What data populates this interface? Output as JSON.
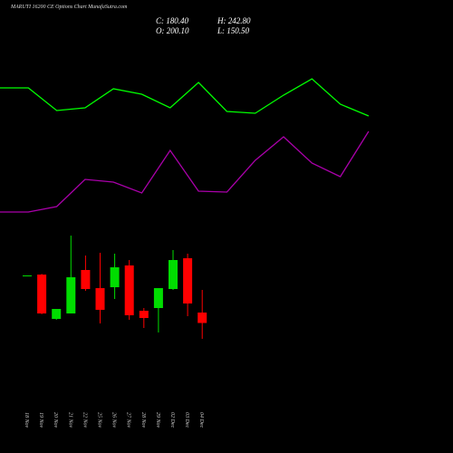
{
  "chart_data": [
    {
      "type": "candlestick",
      "title": "MARUTI 16200  CE Options Chart MunafaSutra.com",
      "summary": [
        "C: 180.40",
        "H: 242.80",
        "O: 200.10",
        "L: 150.50"
      ],
      "categories": [
        "18 Nov",
        "19 Nov",
        "20 Nov",
        "21 Nov",
        "22 Nov",
        "25 Nov",
        "26 Nov",
        "27 Nov",
        "28 Nov",
        "29 Nov",
        "02 Dec",
        "03 Dec",
        "04 Dec"
      ],
      "open": [
        270.1,
        271.7,
        188.1,
        198.4,
        280.4,
        246.2,
        247.9,
        289.0,
        203.5,
        208.6,
        244.5,
        302.6,
        200.1
      ],
      "high": [
        270.1,
        273.0,
        206.9,
        345.3,
        307.7,
        312.9,
        311.2,
        299.2,
        208.6,
        246.2,
        318.0,
        311.2,
        242.8
      ],
      "low": [
        270.1,
        197.0,
        186.4,
        198.4,
        241.1,
        179.6,
        225.7,
        186.4,
        171.0,
        162.5,
        242.8,
        193.2,
        150.5
      ],
      "close": [
        270.1,
        198.4,
        206.9,
        266.7,
        244.5,
        205.2,
        285.5,
        195.0,
        189.8,
        246.2,
        299.2,
        217.2,
        180.4
      ],
      "up_color": "#00dd00",
      "down_color": "#ff0000",
      "ylim": [
        -65,
        790
      ]
    },
    {
      "type": "line",
      "series": [
        {
          "color": "#00ff00",
          "values": [
            153,
            153,
            128,
            131,
            152,
            146,
            131,
            159,
            127,
            125,
            145,
            163,
            135,
            122
          ]
        },
        {
          "color": "#aa00aa",
          "values": [
            16,
            16,
            22,
            52,
            49,
            37,
            84,
            39,
            38,
            73,
            99,
            70,
            55,
            105
          ]
        }
      ],
      "ylim": [
        0,
        250
      ]
    }
  ]
}
